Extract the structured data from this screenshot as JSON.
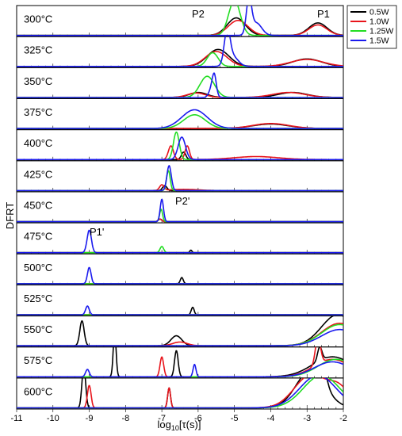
{
  "chart_data": {
    "type": "line",
    "ylabel": "DFRT",
    "xlabel_main": "log",
    "xlabel_sub": "10",
    "xlabel_tail": "[τ(s)]",
    "xlim": [
      -11,
      -2
    ],
    "xticks": [
      "-11",
      "-10",
      "-9",
      "-8",
      "-7",
      "-6",
      "-5",
      "-4",
      "-3",
      "-2"
    ],
    "colors": {
      "0.5W": "#000000",
      "1.0W": "#e8141b",
      "1.25W": "#22dd22",
      "1.5W": "#1a1aee"
    },
    "legend": {
      "placement": "top-right",
      "entries": [
        "0.5W",
        "1.0W",
        "1.25W",
        "1.5W"
      ]
    },
    "peak_labels": [
      "P2",
      "P1",
      "P2'",
      "P1'"
    ],
    "panels": [
      {
        "label": "300°C",
        "series": [
          {
            "name": "0.5W",
            "baseline": 0,
            "peaks": [
              [
                -4.95,
                0.7,
                0.25
              ],
              [
                -2.7,
                0.5,
                0.25
              ]
            ]
          },
          {
            "name": "1.0W",
            "baseline": 0,
            "peaks": [
              [
                -4.9,
                0.6,
                0.27
              ],
              [
                -2.7,
                0.42,
                0.25
              ]
            ]
          },
          {
            "name": "1.25W",
            "baseline": 0,
            "peaks": [
              [
                -5.0,
                1.4,
                0.16
              ]
            ]
          },
          {
            "name": "1.5W",
            "baseline": 0,
            "peaks": [
              [
                -4.6,
                1.4,
                0.07
              ],
              [
                -4.4,
                0.5,
                0.15
              ]
            ]
          }
        ]
      },
      {
        "label": "325°C",
        "series": [
          {
            "name": "0.5W",
            "baseline": 0,
            "peaks": [
              [
                -5.45,
                0.68,
                0.3
              ],
              [
                -3.0,
                0.3,
                0.4
              ]
            ]
          },
          {
            "name": "1.0W",
            "baseline": 0,
            "peaks": [
              [
                -5.5,
                0.6,
                0.3
              ],
              [
                -3.0,
                0.28,
                0.45
              ]
            ]
          },
          {
            "name": "1.25W",
            "baseline": 0,
            "peaks": [
              [
                -5.6,
                0.55,
                0.15
              ]
            ]
          },
          {
            "name": "1.5W",
            "baseline": 0,
            "peaks": [
              [
                -5.2,
                1.3,
                0.08
              ],
              [
                -5.05,
                0.4,
                0.15
              ]
            ]
          }
        ]
      },
      {
        "label": "350°C",
        "series": [
          {
            "name": "0.5W",
            "baseline": 0,
            "peaks": [
              [
                -6.0,
                0.2,
                0.25
              ],
              [
                -3.4,
                0.2,
                0.4
              ]
            ]
          },
          {
            "name": "1.0W",
            "baseline": 0,
            "peaks": [
              [
                -6.05,
                0.18,
                0.25
              ],
              [
                -3.5,
                0.2,
                0.45
              ]
            ]
          },
          {
            "name": "1.25W",
            "baseline": 0,
            "peaks": [
              [
                -5.75,
                0.85,
                0.2
              ]
            ]
          },
          {
            "name": "1.5W",
            "baseline": 0,
            "peaks": [
              [
                -5.6,
                0.5,
                0.08
              ],
              [
                -5.55,
                0.55,
                0.05
              ]
            ]
          }
        ]
      },
      {
        "label": "375°C",
        "series": [
          {
            "name": "0.5W",
            "baseline": 0,
            "peaks": [
              [
                -4.0,
                0.18,
                0.5
              ]
            ]
          },
          {
            "name": "1.0W",
            "baseline": 0,
            "peaks": [
              [
                -4.0,
                0.2,
                0.5
              ]
            ]
          },
          {
            "name": "1.25W",
            "baseline": 0,
            "peaks": [
              [
                -6.1,
                0.55,
                0.3
              ]
            ]
          },
          {
            "name": "1.5W",
            "baseline": 0,
            "peaks": [
              [
                -6.1,
                0.75,
                0.35
              ]
            ]
          }
        ]
      },
      {
        "label": "400°C",
        "series": [
          {
            "name": "0.5W",
            "baseline": 0,
            "peaks": [
              [
                -6.4,
                0.3,
                0.06
              ]
            ]
          },
          {
            "name": "1.0W",
            "baseline": 0,
            "peaks": [
              [
                -6.75,
                0.55,
                0.07
              ],
              [
                -6.3,
                0.55,
                0.06
              ],
              [
                -4.4,
                0.12,
                0.6
              ]
            ]
          },
          {
            "name": "1.25W",
            "baseline": 0,
            "peaks": [
              [
                -6.6,
                1.1,
                0.08
              ]
            ]
          },
          {
            "name": "1.5W",
            "baseline": 0,
            "peaks": [
              [
                -6.45,
                0.9,
                0.1
              ]
            ]
          }
        ]
      },
      {
        "label": "425°C",
        "series": [
          {
            "name": "0.5W",
            "baseline": 0,
            "peaks": [
              [
                -6.92,
                0.2,
                0.06
              ]
            ]
          },
          {
            "name": "1.0W",
            "baseline": 0,
            "peaks": [
              [
                -7.0,
                0.22,
                0.06
              ],
              [
                -6.4,
                0.05,
                0.4
              ]
            ]
          },
          {
            "name": "1.25W",
            "baseline": 0,
            "peaks": [
              [
                -6.82,
                0.8,
                0.05
              ]
            ]
          },
          {
            "name": "1.5W",
            "baseline": 0,
            "peaks": [
              [
                -6.8,
                1.0,
                0.06
              ]
            ]
          }
        ]
      },
      {
        "label": "450°C",
        "series": [
          {
            "name": "0.5W",
            "baseline": 0,
            "peaks": [
              [
                -7.05,
                0.1,
                0.05
              ]
            ]
          },
          {
            "name": "1.0W",
            "baseline": 0,
            "peaks": [
              [
                -7.05,
                0.1,
                0.05
              ]
            ]
          },
          {
            "name": "1.25W",
            "baseline": 0,
            "peaks": [
              [
                -7.02,
                0.5,
                0.04
              ]
            ]
          },
          {
            "name": "1.5W",
            "baseline": 0,
            "peaks": [
              [
                -7.0,
                0.9,
                0.045
              ]
            ]
          }
        ]
      },
      {
        "label": "475°C",
        "series": [
          {
            "name": "0.5W",
            "baseline": 0,
            "peaks": [
              [
                -6.2,
                0.1,
                0.03
              ]
            ]
          },
          {
            "name": "1.0W",
            "baseline": 0,
            "peaks": []
          },
          {
            "name": "1.25W",
            "baseline": 0,
            "peaks": [
              [
                -7.0,
                0.25,
                0.05
              ]
            ]
          },
          {
            "name": "1.5W",
            "baseline": 0,
            "peaks": [
              [
                -9.0,
                0.9,
                0.06
              ]
            ]
          }
        ]
      },
      {
        "label": "500°C",
        "series": [
          {
            "name": "0.5W",
            "baseline": 0,
            "peaks": [
              [
                -6.45,
                0.25,
                0.04
              ]
            ]
          },
          {
            "name": "1.0W",
            "baseline": 0,
            "peaks": []
          },
          {
            "name": "1.25W",
            "baseline": 0,
            "peaks": []
          },
          {
            "name": "1.5W",
            "baseline": 0,
            "peaks": [
              [
                -9.0,
                0.65,
                0.05
              ]
            ]
          }
        ]
      },
      {
        "label": "525°C",
        "series": [
          {
            "name": "0.5W",
            "baseline": 0,
            "peaks": [
              [
                -6.15,
                0.3,
                0.04
              ]
            ]
          },
          {
            "name": "1.0W",
            "baseline": 0,
            "peaks": []
          },
          {
            "name": "1.25W",
            "baseline": 0,
            "peaks": []
          },
          {
            "name": "1.5W",
            "baseline": 0,
            "peaks": [
              [
                -9.05,
                0.35,
                0.05
              ]
            ]
          }
        ]
      },
      {
        "label": "550°C",
        "series": [
          {
            "name": "0.5W",
            "baseline": 0,
            "peaks": [
              [
                -9.2,
                1.0,
                0.06
              ],
              [
                -6.6,
                0.4,
                0.15
              ],
              [
                -2.15,
                1.25,
                0.45
              ]
            ]
          },
          {
            "name": "1.0W",
            "baseline": 0,
            "peaks": [
              [
                -6.5,
                0.15,
                0.2
              ],
              [
                -2.1,
                0.9,
                0.5
              ]
            ]
          },
          {
            "name": "1.25W",
            "baseline": 0,
            "peaks": [
              [
                -2.1,
                0.85,
                0.5
              ]
            ]
          },
          {
            "name": "1.5W",
            "baseline": 0,
            "peaks": [
              [
                -2.1,
                0.65,
                0.5
              ]
            ]
          }
        ]
      },
      {
        "label": "575°C",
        "series": [
          {
            "name": "0.5W",
            "baseline": 0,
            "peaks": [
              [
                -8.3,
                1.75,
                0.04
              ],
              [
                -6.6,
                1.05,
                0.05
              ],
              [
                -2.65,
                0.55,
                0.06
              ],
              [
                -2.3,
                0.8,
                0.55
              ]
            ]
          },
          {
            "name": "1.0W",
            "baseline": 0,
            "peaks": [
              [
                -7.0,
                0.8,
                0.05
              ],
              [
                -2.7,
                1.1,
                0.07
              ],
              [
                -2.3,
                0.7,
                0.5
              ]
            ]
          },
          {
            "name": "1.25W",
            "baseline": 0,
            "peaks": [
              [
                -2.2,
                0.7,
                0.5
              ]
            ]
          },
          {
            "name": "1.5W",
            "baseline": 0,
            "peaks": [
              [
                -9.05,
                0.3,
                0.05
              ],
              [
                -6.1,
                0.5,
                0.04
              ],
              [
                -2.3,
                0.6,
                0.5
              ]
            ]
          }
        ]
      },
      {
        "label": "600°C",
        "series": [
          {
            "name": "0.5W",
            "baseline": 0,
            "peaks": [
              [
                -9.15,
                1.7,
                0.05
              ],
              [
                -6.8,
                0.8,
                0.04
              ],
              [
                -2.9,
                1.5,
                0.4
              ],
              [
                -2.55,
                0.6,
                0.1
              ]
            ]
          },
          {
            "name": "1.0W",
            "baseline": 0,
            "peaks": [
              [
                -9.0,
                0.9,
                0.05
              ],
              [
                -6.8,
                0.8,
                0.04
              ],
              [
                -2.9,
                1.3,
                0.45
              ],
              [
                -2.1,
                0.7,
                0.3
              ]
            ]
          },
          {
            "name": "1.25W",
            "baseline": 0,
            "peaks": [
              [
                -2.6,
                1.3,
                0.5
              ]
            ]
          },
          {
            "name": "1.5W",
            "baseline": 0,
            "peaks": [
              [
                -2.7,
                1.3,
                0.5
              ]
            ]
          }
        ]
      }
    ]
  }
}
